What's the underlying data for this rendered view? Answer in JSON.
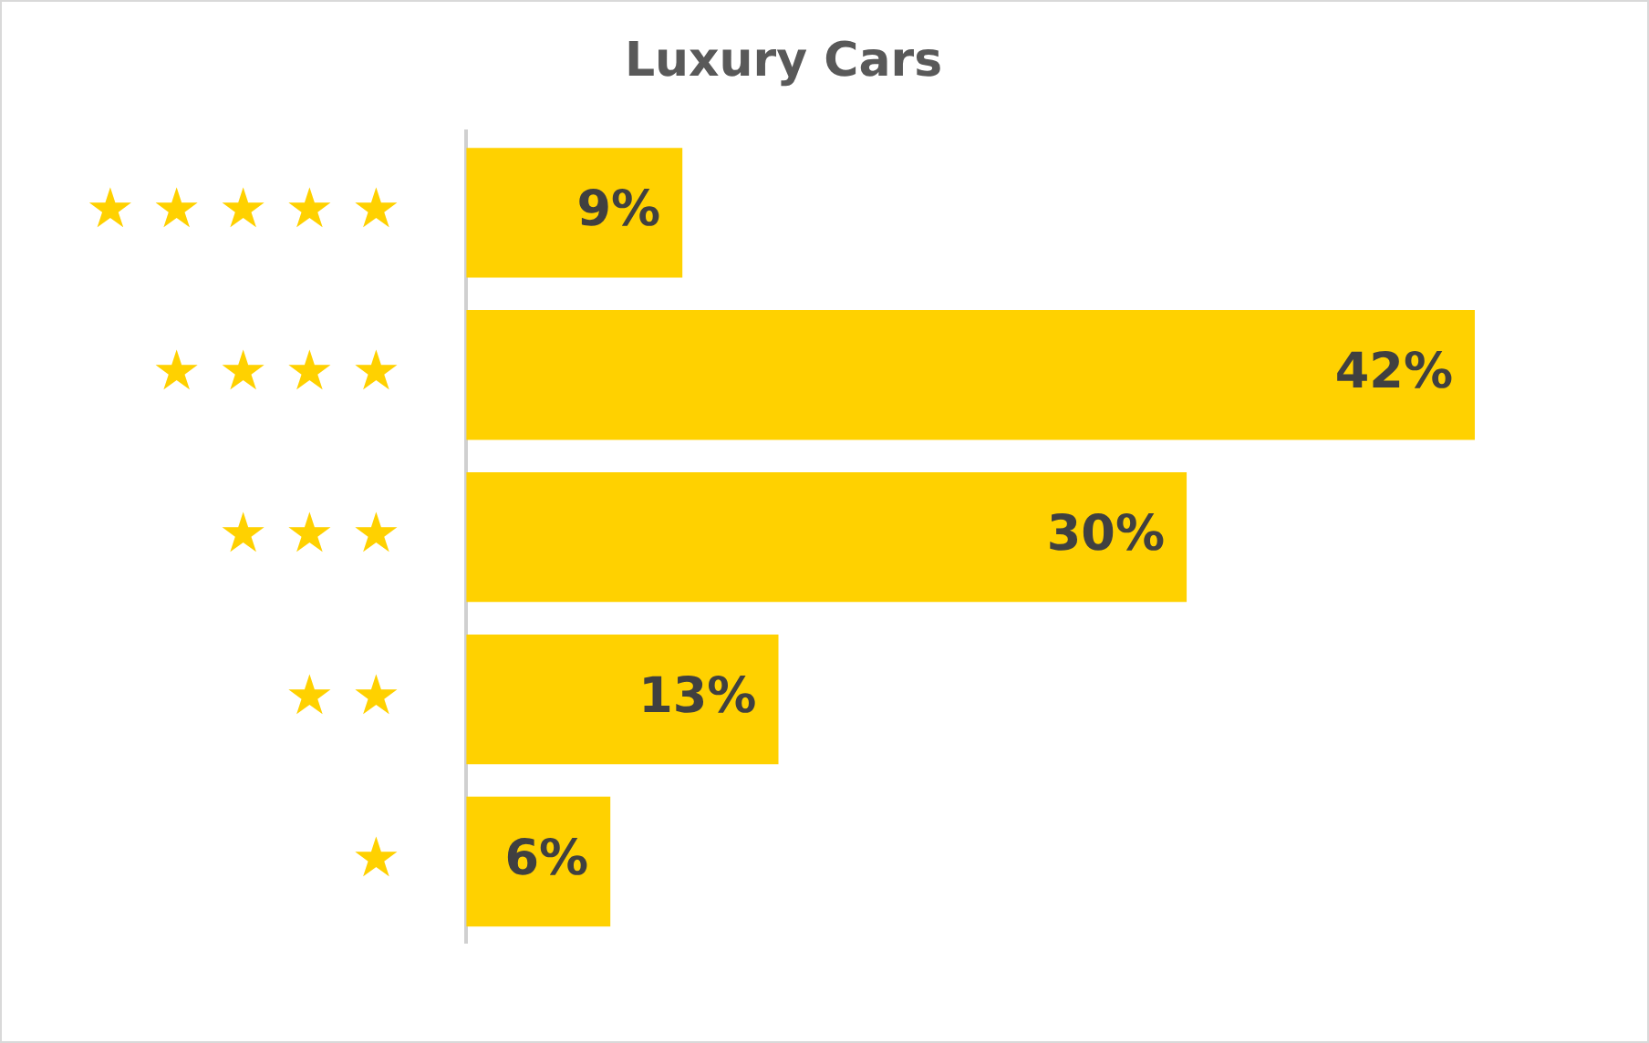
{
  "chart_data": {
    "type": "bar",
    "title": "Luxury Cars",
    "orientation": "horizontal",
    "categories": [
      "★ ★ ★ ★ ★",
      "★ ★ ★ ★",
      "★ ★ ★",
      "★ ★",
      "★"
    ],
    "values": [
      9,
      42,
      30,
      13,
      6
    ],
    "color": "#ffd100",
    "value_labels": [
      "9%",
      "42%",
      "30%",
      "13%",
      "6%"
    ]
  }
}
